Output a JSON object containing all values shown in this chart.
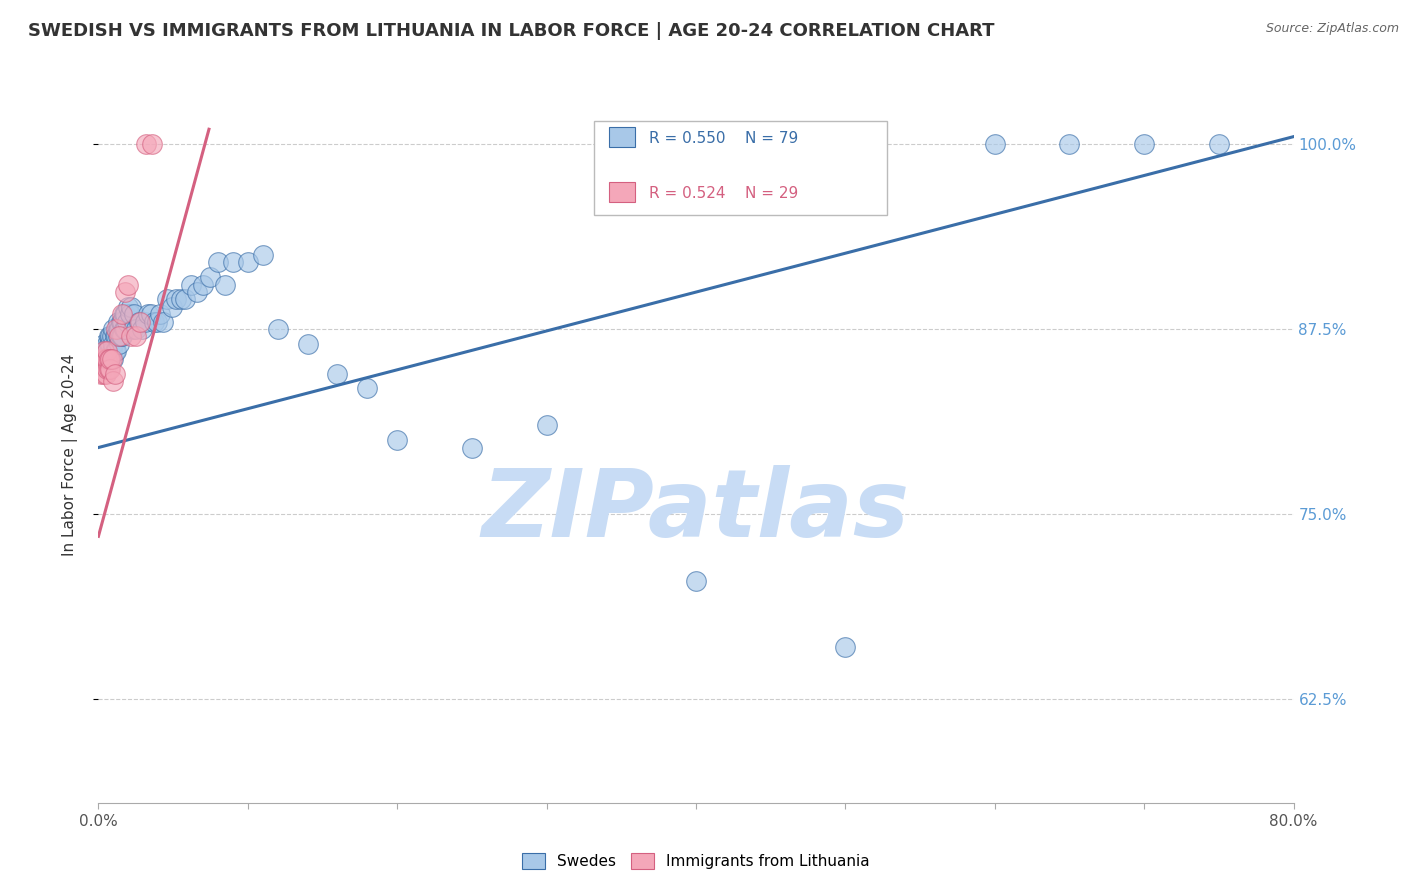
{
  "title": "SWEDISH VS IMMIGRANTS FROM LITHUANIA IN LABOR FORCE | AGE 20-24 CORRELATION CHART",
  "source": "Source: ZipAtlas.com",
  "ylabel": "In Labor Force | Age 20-24",
  "ylabel_ticks": [
    0.625,
    0.75,
    0.875,
    1.0
  ],
  "ylabel_tick_labels": [
    "62.5%",
    "75.0%",
    "87.5%",
    "100.0%"
  ],
  "xmin": 0.0,
  "xmax": 0.8,
  "ymin": 0.555,
  "ymax": 1.025,
  "legend_blue_r": "R = 0.550",
  "legend_blue_n": "N = 79",
  "legend_pink_r": "R = 0.524",
  "legend_pink_n": "N = 29",
  "legend_blue_label": "Swedes",
  "legend_pink_label": "Immigrants from Lithuania",
  "blue_color": "#A8C8E8",
  "pink_color": "#F4A7B9",
  "trend_blue": "#3A6EA8",
  "trend_pink": "#D46080",
  "watermark": "ZIPatlas",
  "watermark_color": "#C8DCF5",
  "title_fontsize": 13,
  "axis_label_fontsize": 11,
  "tick_fontsize": 11,
  "blue_trend_x0": 0.0,
  "blue_trend_y0": 0.795,
  "blue_trend_x1": 0.8,
  "blue_trend_y1": 1.005,
  "pink_trend_x0": 0.0,
  "pink_trend_y0": 0.735,
  "pink_trend_x1": 0.074,
  "pink_trend_y1": 1.01,
  "swedes_x": [
    0.002,
    0.003,
    0.004,
    0.004,
    0.005,
    0.005,
    0.006,
    0.006,
    0.007,
    0.007,
    0.007,
    0.008,
    0.008,
    0.008,
    0.009,
    0.009,
    0.01,
    0.01,
    0.01,
    0.011,
    0.011,
    0.012,
    0.012,
    0.013,
    0.013,
    0.013,
    0.014,
    0.014,
    0.015,
    0.015,
    0.016,
    0.016,
    0.017,
    0.017,
    0.018,
    0.018,
    0.019,
    0.02,
    0.021,
    0.022,
    0.023,
    0.024,
    0.025,
    0.027,
    0.029,
    0.031,
    0.033,
    0.035,
    0.037,
    0.039,
    0.041,
    0.043,
    0.046,
    0.049,
    0.052,
    0.055,
    0.058,
    0.062,
    0.066,
    0.07,
    0.075,
    0.08,
    0.085,
    0.09,
    0.1,
    0.11,
    0.12,
    0.14,
    0.16,
    0.18,
    0.2,
    0.25,
    0.3,
    0.4,
    0.5,
    0.6,
    0.65,
    0.7,
    0.75
  ],
  "swedes_y": [
    0.855,
    0.86,
    0.855,
    0.865,
    0.85,
    0.86,
    0.855,
    0.865,
    0.855,
    0.865,
    0.87,
    0.855,
    0.865,
    0.87,
    0.86,
    0.87,
    0.855,
    0.865,
    0.875,
    0.86,
    0.87,
    0.86,
    0.87,
    0.87,
    0.875,
    0.88,
    0.865,
    0.875,
    0.87,
    0.88,
    0.87,
    0.88,
    0.875,
    0.885,
    0.875,
    0.885,
    0.88,
    0.89,
    0.885,
    0.89,
    0.875,
    0.885,
    0.875,
    0.88,
    0.875,
    0.88,
    0.885,
    0.885,
    0.88,
    0.88,
    0.885,
    0.88,
    0.895,
    0.89,
    0.895,
    0.895,
    0.895,
    0.905,
    0.9,
    0.905,
    0.91,
    0.92,
    0.905,
    0.92,
    0.92,
    0.925,
    0.875,
    0.865,
    0.845,
    0.835,
    0.8,
    0.795,
    0.81,
    0.705,
    0.66,
    1.0,
    1.0,
    1.0,
    1.0
  ],
  "lithuania_x": [
    0.001,
    0.002,
    0.003,
    0.003,
    0.004,
    0.004,
    0.004,
    0.005,
    0.005,
    0.006,
    0.006,
    0.006,
    0.007,
    0.007,
    0.008,
    0.008,
    0.009,
    0.01,
    0.011,
    0.012,
    0.014,
    0.016,
    0.018,
    0.02,
    0.022,
    0.025,
    0.028,
    0.032,
    0.036
  ],
  "lithuania_y": [
    0.85,
    0.845,
    0.85,
    0.855,
    0.845,
    0.855,
    0.86,
    0.845,
    0.855,
    0.848,
    0.855,
    0.86,
    0.848,
    0.855,
    0.848,
    0.855,
    0.855,
    0.84,
    0.845,
    0.875,
    0.87,
    0.885,
    0.9,
    0.905,
    0.87,
    0.87,
    0.88,
    1.0,
    1.0
  ]
}
